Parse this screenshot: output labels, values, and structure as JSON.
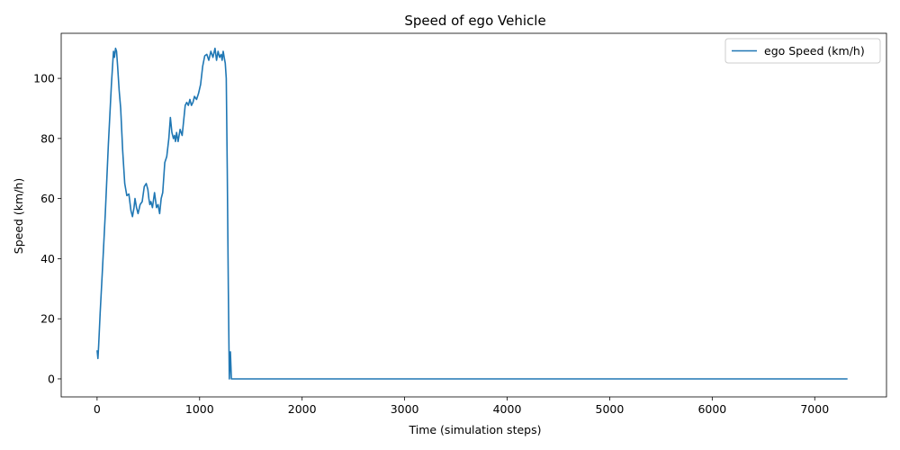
{
  "chart_data": {
    "type": "line",
    "title": "Speed of ego Vehicle",
    "xlabel": "Time (simulation steps)",
    "ylabel": "Speed (km/h)",
    "xlim": [
      -350,
      7700
    ],
    "ylim": [
      -6,
      115
    ],
    "xticks": [
      0,
      1000,
      2000,
      3000,
      4000,
      5000,
      6000,
      7000
    ],
    "yticks": [
      0,
      20,
      40,
      60,
      80,
      100
    ],
    "grid": false,
    "legend_position": "top-right",
    "series": [
      {
        "name": "ego Speed (km/h)",
        "color": "#1f77b4",
        "x": [
          0,
          8,
          15,
          30,
          50,
          80,
          110,
          140,
          160,
          170,
          180,
          190,
          200,
          215,
          230,
          250,
          270,
          290,
          310,
          330,
          345,
          360,
          370,
          385,
          400,
          420,
          440,
          460,
          480,
          495,
          505,
          515,
          525,
          540,
          560,
          580,
          595,
          610,
          625,
          640,
          660,
          680,
          700,
          715,
          730,
          745,
          755,
          765,
          775,
          790,
          810,
          830,
          845,
          860,
          875,
          890,
          905,
          920,
          935,
          950,
          970,
          990,
          1010,
          1030,
          1050,
          1070,
          1090,
          1110,
          1130,
          1150,
          1165,
          1180,
          1195,
          1210,
          1220,
          1230,
          1240,
          1250,
          1260,
          1270,
          1280,
          1290,
          1300,
          1310,
          1315,
          1320,
          1330,
          1350,
          2000,
          3000,
          4000,
          5000,
          6000,
          7000,
          7320
        ],
        "values": [
          9.5,
          6.8,
          11,
          22,
          35,
          55,
          78,
          98,
          109,
          107,
          110,
          109,
          104,
          96,
          90,
          76,
          65,
          61,
          61.5,
          56,
          54,
          57,
          60,
          57,
          55,
          58,
          59,
          64,
          65,
          63,
          60,
          58,
          59,
          57,
          62,
          57,
          58,
          55,
          60,
          62,
          72,
          74,
          80,
          87,
          82,
          80,
          81,
          79,
          82,
          79,
          83,
          81,
          86,
          91,
          92,
          91,
          93,
          91,
          92,
          94,
          93,
          95,
          98,
          104,
          107.5,
          108,
          106,
          109,
          107,
          110,
          106,
          109,
          107,
          108,
          106,
          109,
          107,
          105,
          100,
          70,
          30,
          0,
          9,
          0,
          0,
          0,
          0,
          0,
          0,
          0,
          0,
          0,
          0,
          0,
          0
        ]
      }
    ]
  }
}
